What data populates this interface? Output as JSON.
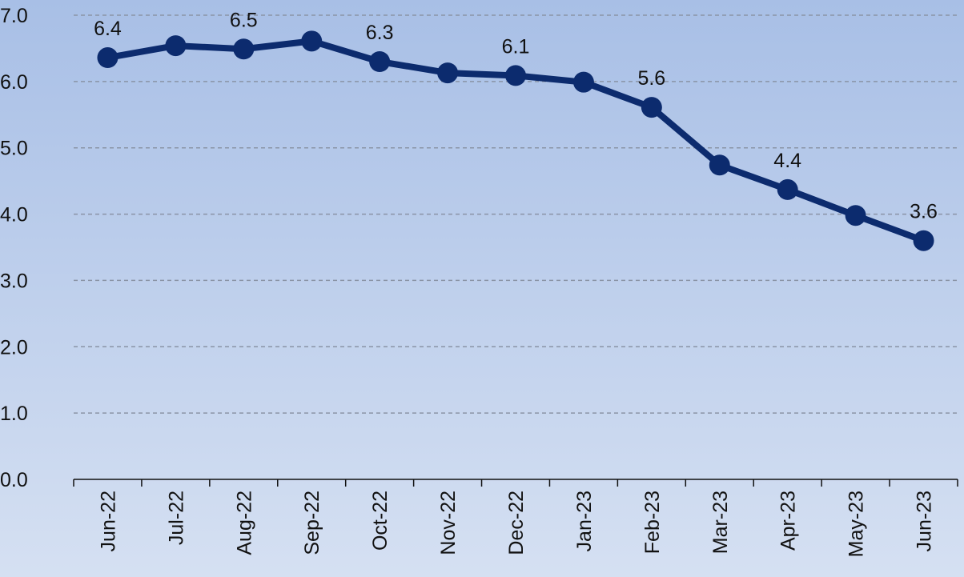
{
  "chart_data": {
    "type": "line",
    "categories": [
      "Jun-22",
      "Jul-22",
      "Aug-22",
      "Sep-22",
      "Oct-22",
      "Nov-22",
      "Dec-22",
      "Jan-23",
      "Feb-23",
      "Mar-23",
      "Apr-23",
      "May-23",
      "Jun-23"
    ],
    "values": [
      6.36,
      6.54,
      6.49,
      6.61,
      6.3,
      6.13,
      6.09,
      5.99,
      5.61,
      4.74,
      4.37,
      3.98,
      3.6
    ],
    "value_labels": [
      "6.4",
      null,
      "6.5",
      null,
      "6.3",
      null,
      "6.1",
      null,
      "5.6",
      null,
      "4.4",
      null,
      "3.6"
    ],
    "color": "#0c2b6e",
    "ylim": [
      0,
      7
    ],
    "yticks": [
      {
        "value": 0,
        "label": "0.0"
      },
      {
        "value": 1,
        "label": "1.0"
      },
      {
        "value": 2,
        "label": "2.0"
      },
      {
        "value": 3,
        "label": "3.0"
      },
      {
        "value": 4,
        "label": "4.0"
      },
      {
        "value": 5,
        "label": "5.0"
      },
      {
        "value": 6,
        "label": "6.0"
      },
      {
        "value": 7,
        "label": "7.0"
      }
    ],
    "grid": true
  }
}
